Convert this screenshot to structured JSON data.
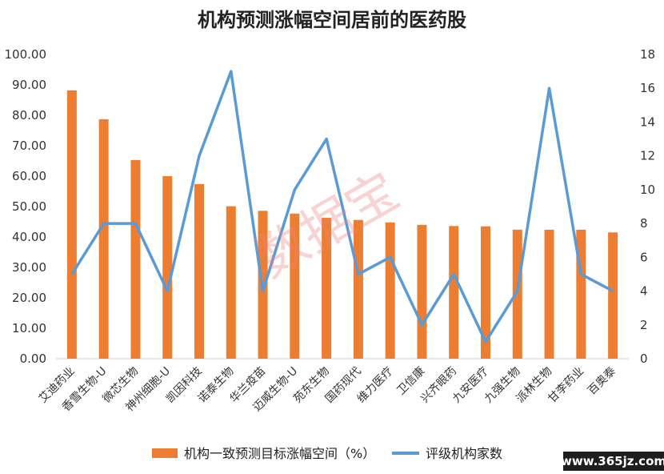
{
  "chart_data": {
    "type": "bar",
    "title": "机构预测涨幅空间居前的医药股",
    "categories": [
      "艾迪药业",
      "香雪生物-U",
      "微芯生物",
      "神州细胞-U",
      "凯因科技",
      "诺泰生物",
      "华兰疫苗",
      "迈威生物-U",
      "苑东生物",
      "国药现代",
      "维力医疗",
      "卫信康",
      "兴齐眼药",
      "九安医疗",
      "九强生物",
      "派林生物",
      "甘李药业",
      "百奥泰"
    ],
    "left_axis": {
      "ylim": [
        0,
        100
      ],
      "ticks": [
        "0.00",
        "10.00",
        "20.00",
        "30.00",
        "40.00",
        "50.00",
        "60.00",
        "70.00",
        "80.00",
        "90.00",
        "100.00"
      ]
    },
    "right_axis": {
      "ylim": [
        0,
        18
      ],
      "ticks": [
        "0",
        "2",
        "4",
        "6",
        "8",
        "10",
        "12",
        "14",
        "16",
        "18"
      ]
    },
    "series": [
      {
        "name": "机构一致预测目标涨幅空间（%）",
        "kind": "bar",
        "axis": "left",
        "color": "#ed7d31",
        "values": [
          88.2,
          78.7,
          65.3,
          60.0,
          57.4,
          50.1,
          48.6,
          47.7,
          46.3,
          45.6,
          44.8,
          44.0,
          43.6,
          43.5,
          42.4,
          42.4,
          42.4,
          41.5
        ]
      },
      {
        "name": "评级机构家数",
        "kind": "line",
        "axis": "right",
        "color": "#5b9bd5",
        "values": [
          5,
          8,
          8,
          4,
          12,
          17,
          4,
          10,
          13,
          5,
          6,
          2,
          5,
          1,
          4,
          16,
          5,
          4
        ]
      }
    ],
    "legend_position": "bottom",
    "grid": false
  },
  "watermark": {
    "text": "数据宝",
    "color": "#f08080"
  },
  "site_badge": {
    "text": "www.365jz.com",
    "color": "#1e1e1e"
  }
}
